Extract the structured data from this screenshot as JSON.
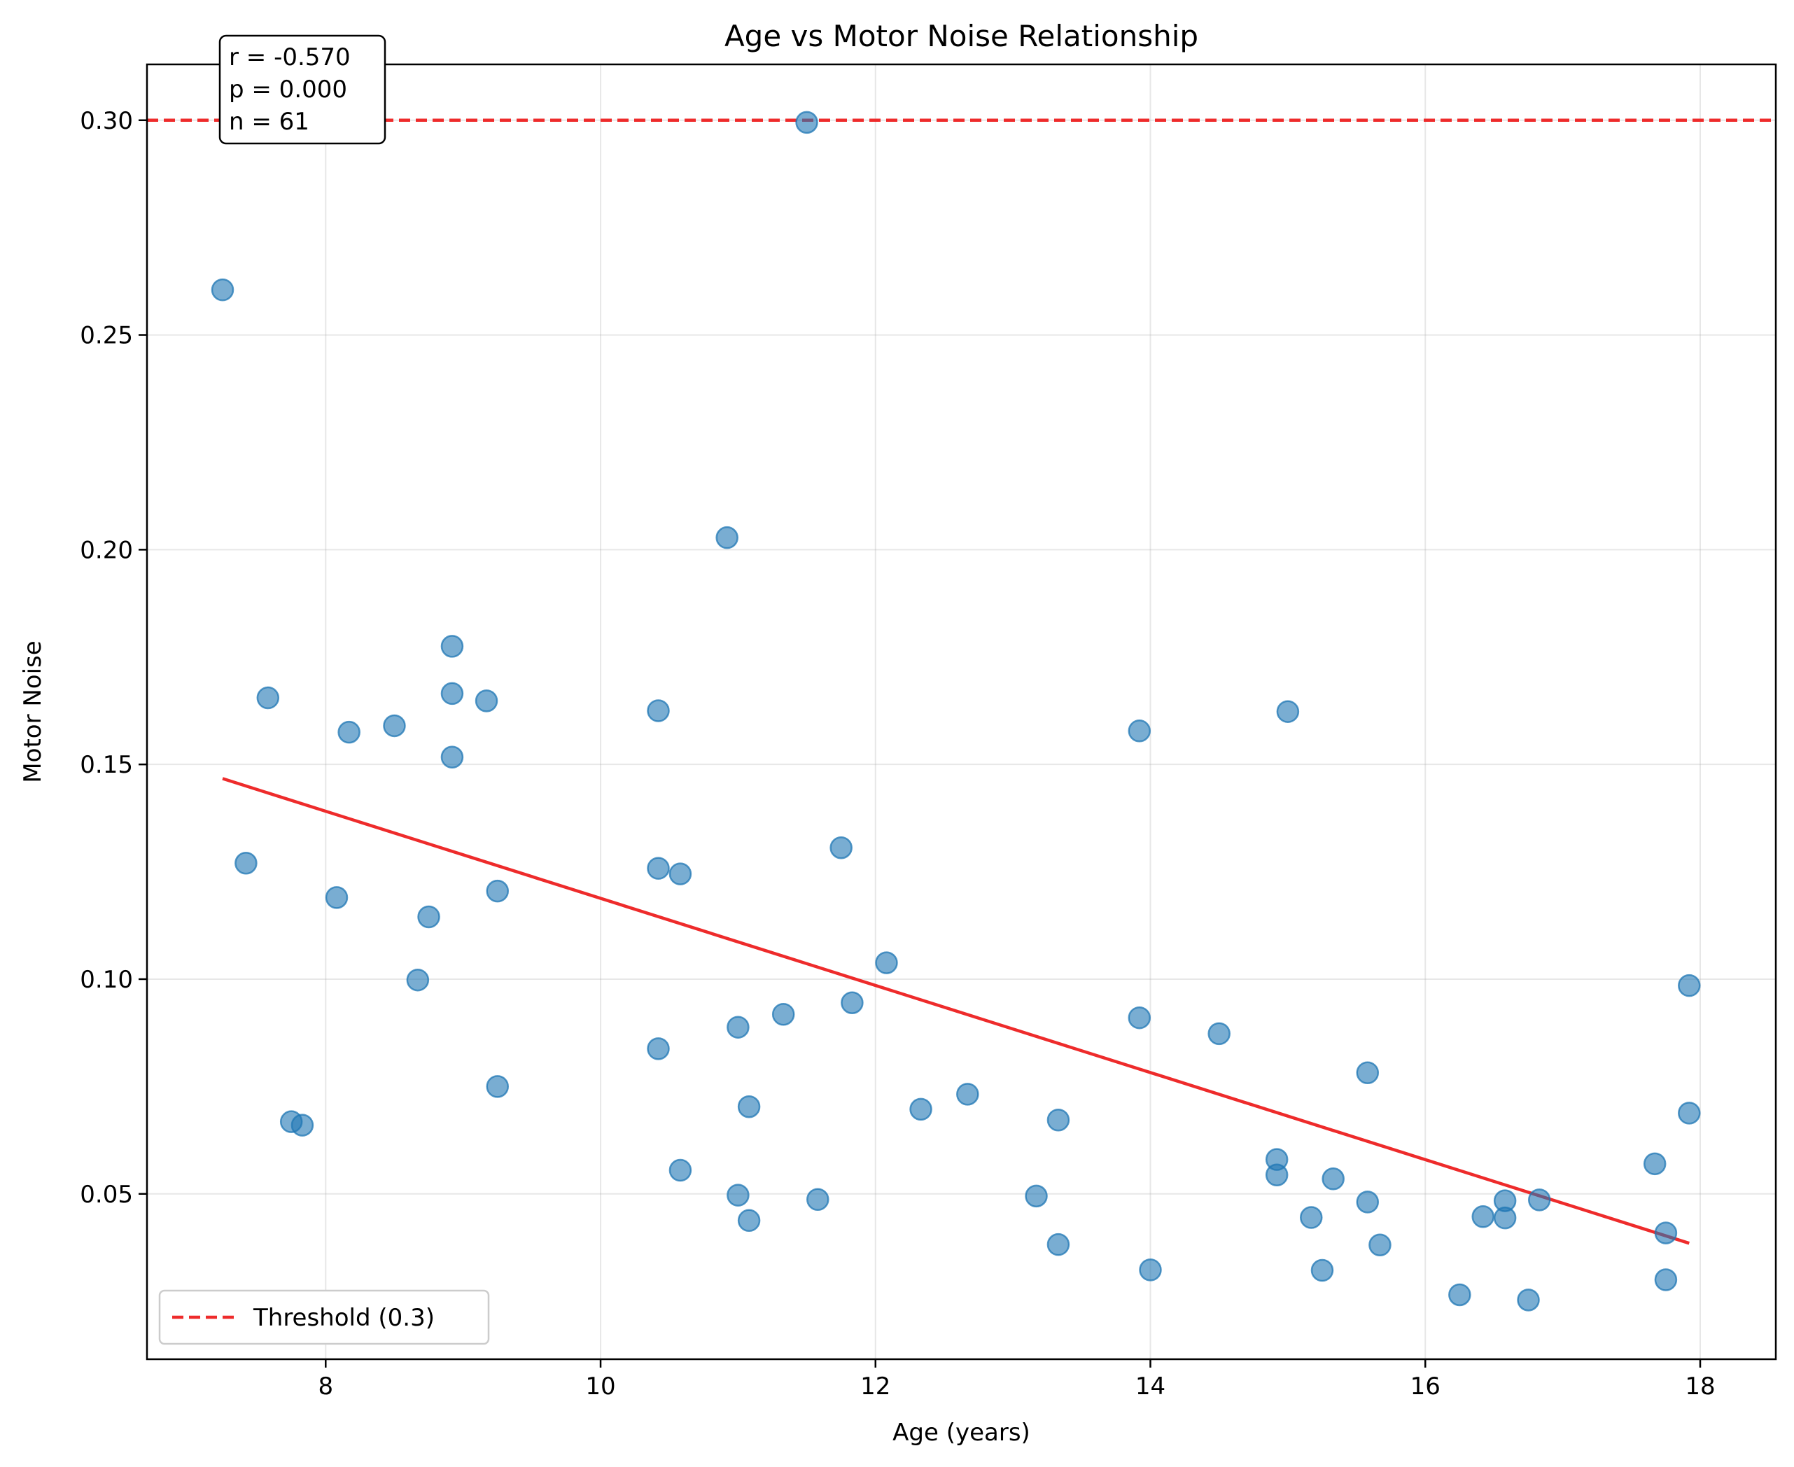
{
  "chart_data": {
    "type": "scatter",
    "title": "Age vs Motor Noise Relationship",
    "xlabel": "Age (years)",
    "ylabel": "Motor Noise",
    "xlim": [
      6.7,
      18.55
    ],
    "ylim": [
      0.0115,
      0.313
    ],
    "xticks": [
      8,
      10,
      12,
      14,
      16,
      18
    ],
    "xtick_labels": [
      "8",
      "10",
      "12",
      "14",
      "16",
      "18"
    ],
    "yticks": [
      0.05,
      0.1,
      0.15,
      0.2,
      0.25,
      0.3
    ],
    "ytick_labels": [
      "0.05",
      "0.10",
      "0.15",
      "0.20",
      "0.25",
      "0.30"
    ],
    "grid": true,
    "point_color": "#1f77b4",
    "series": [
      {
        "points": [
          [
            7.25,
            0.2605
          ],
          [
            7.42,
            0.127
          ],
          [
            7.58,
            0.1655
          ],
          [
            7.75,
            0.0668
          ],
          [
            7.83,
            0.066
          ],
          [
            8.08,
            0.119
          ],
          [
            8.17,
            0.1575
          ],
          [
            8.5,
            0.159
          ],
          [
            8.67,
            0.0998
          ],
          [
            8.75,
            0.1145
          ],
          [
            8.92,
            0.1775
          ],
          [
            8.92,
            0.1665
          ],
          [
            8.92,
            0.1517
          ],
          [
            9.17,
            0.1648
          ],
          [
            9.25,
            0.1205
          ],
          [
            9.25,
            0.075
          ],
          [
            10.42,
            0.1625
          ],
          [
            10.42,
            0.1258
          ],
          [
            10.42,
            0.0838
          ],
          [
            10.58,
            0.1245
          ],
          [
            10.58,
            0.0555
          ],
          [
            10.92,
            0.2028
          ],
          [
            11.0,
            0.0888
          ],
          [
            11.0,
            0.0497
          ],
          [
            11.08,
            0.0703
          ],
          [
            11.08,
            0.0438
          ],
          [
            11.33,
            0.0918
          ],
          [
            11.5,
            0.2995
          ],
          [
            11.58,
            0.0487
          ],
          [
            11.75,
            0.1306
          ],
          [
            11.83,
            0.0945
          ],
          [
            12.08,
            0.1038
          ],
          [
            12.33,
            0.0697
          ],
          [
            12.67,
            0.0732
          ],
          [
            13.17,
            0.0495
          ],
          [
            13.33,
            0.0672
          ],
          [
            13.33,
            0.0382
          ],
          [
            13.92,
            0.1578
          ],
          [
            13.92,
            0.091
          ],
          [
            14.0,
            0.0323
          ],
          [
            14.5,
            0.0873
          ],
          [
            14.92,
            0.058
          ],
          [
            14.92,
            0.0544
          ],
          [
            15.0,
            0.1623
          ],
          [
            15.17,
            0.0445
          ],
          [
            15.25,
            0.0322
          ],
          [
            15.33,
            0.0535
          ],
          [
            15.58,
            0.0782
          ],
          [
            15.58,
            0.0481
          ],
          [
            15.67,
            0.0381
          ],
          [
            16.25,
            0.0265
          ],
          [
            16.42,
            0.0447
          ],
          [
            16.58,
            0.0484
          ],
          [
            16.58,
            0.0444
          ],
          [
            16.75,
            0.0253
          ],
          [
            16.83,
            0.0486
          ],
          [
            17.67,
            0.057
          ],
          [
            17.75,
            0.0409
          ],
          [
            17.75,
            0.03
          ],
          [
            17.92,
            0.0985
          ],
          [
            17.92,
            0.0688
          ]
        ]
      }
    ],
    "trend_line": {
      "x": [
        7.25,
        17.92
      ],
      "y": [
        0.1467,
        0.0385
      ],
      "color": "#ee2b2b"
    },
    "threshold": {
      "y": 0.3,
      "label": "Threshold (0.3)",
      "color": "#ee2b2b"
    },
    "stats_box": [
      "r = -0.570",
      "p = 0.000",
      "n = 61"
    ],
    "legend_position": "lower-left"
  }
}
